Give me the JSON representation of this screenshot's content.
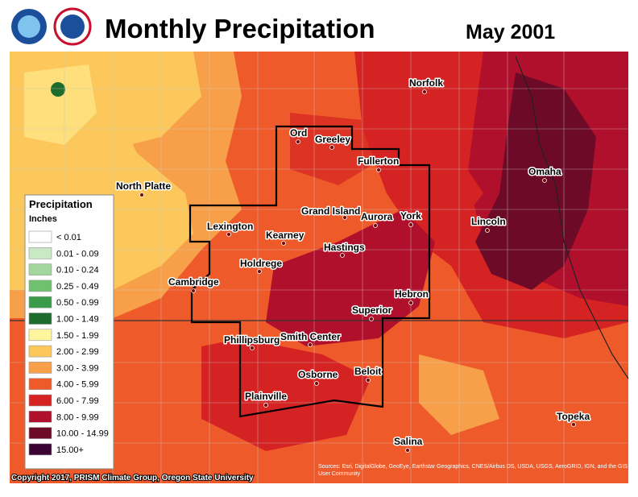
{
  "header": {
    "title": "Monthly Precipitation",
    "date": "May 2001"
  },
  "legend": {
    "title": "Precipitation",
    "units": "Inches",
    "items": [
      {
        "label": "< 0.01",
        "color": "#ffffff"
      },
      {
        "label": "0.01 - 0.09",
        "color": "#c9e8c4"
      },
      {
        "label": "0.10 - 0.24",
        "color": "#a3d69d"
      },
      {
        "label": "0.25 - 0.49",
        "color": "#6fc06f"
      },
      {
        "label": "0.50 - 0.99",
        "color": "#3a9c48"
      },
      {
        "label": "1.00 - 1.49",
        "color": "#1d6c2e"
      },
      {
        "label": "1.50 - 1.99",
        "color": "#fff59c"
      },
      {
        "label": "2.00 - 2.99",
        "color": "#fcc85c"
      },
      {
        "label": "3.00 - 3.99",
        "color": "#f8a049"
      },
      {
        "label": "4.00 - 5.99",
        "color": "#ef5a2a"
      },
      {
        "label": "6.00 - 7.99",
        "color": "#d52222"
      },
      {
        "label": "8.00 - 9.99",
        "color": "#b0102c"
      },
      {
        "label": "10.00 - 14.99",
        "color": "#6c0a28"
      },
      {
        "label": "15.00+",
        "color": "#3a0332"
      }
    ]
  },
  "cities": [
    "Norfolk",
    "Ord",
    "Greeley",
    "Fullerton",
    "North Platte",
    "Omaha",
    "Grand Island",
    "Aurora",
    "York",
    "Lincoln",
    "Lexington",
    "Kearney",
    "Hastings",
    "Holdrege",
    "Cambridge",
    "Hebron",
    "Superior",
    "Phillipsburg",
    "Smith Center",
    "Osborne",
    "Beloit",
    "Plainville",
    "Topeka",
    "Salina"
  ],
  "footer": {
    "copyright": "Copyright 2017, PRISM Climate Group, Oregon State University",
    "attribution": "Sources: Esri, DigitalGlobe, GeoEye, Earthstar Geographics, CNES/Airbus DS, USDA, USGS, AeroGRID, IGN, and the GIS User Community"
  }
}
